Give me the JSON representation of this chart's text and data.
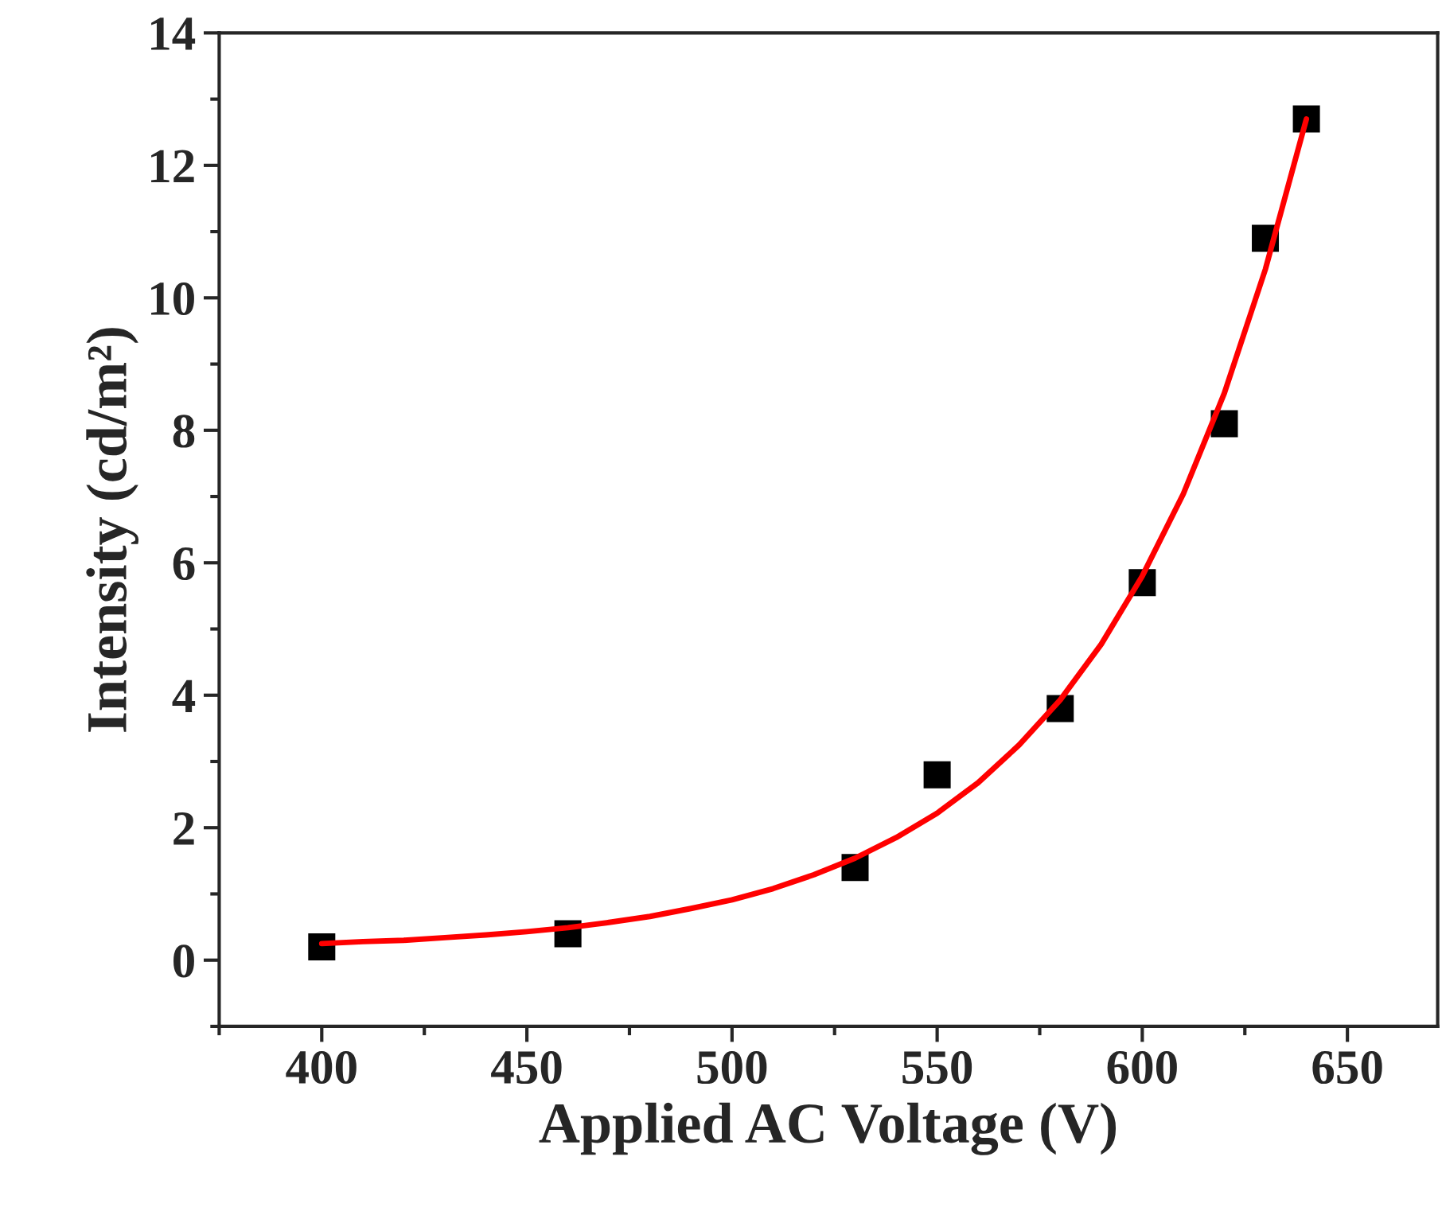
{
  "chart_data": {
    "type": "scatter",
    "xlabel": "Applied AC Voltage (V)",
    "ylabel": "Intensity (cd/m²)",
    "xlim": [
      375,
      672
    ],
    "xticks": [
      400,
      450,
      500,
      550,
      600,
      650
    ],
    "ylim": [
      -1,
      14
    ],
    "yticks": [
      0,
      2,
      4,
      6,
      8,
      10,
      12,
      14
    ],
    "grid": false,
    "legend": false,
    "series": [
      {
        "color": "#000000",
        "marker": "square",
        "x": [
          400,
          460,
          530,
          550,
          580,
          600,
          620,
          630,
          640
        ],
        "values": [
          0.2,
          0.4,
          1.4,
          2.8,
          3.8,
          5.7,
          8.1,
          10.9,
          12.7
        ]
      },
      {
        "type": "line",
        "color": "#ff0000",
        "marker": "none",
        "line_style": "solid",
        "x": [
          400,
          410,
          420,
          430,
          440,
          450,
          460,
          470,
          480,
          490,
          500,
          510,
          520,
          530,
          540,
          550,
          560,
          570,
          580,
          590,
          600,
          610,
          620,
          630,
          640
        ],
        "values": [
          0.25,
          0.28,
          0.3,
          0.34,
          0.38,
          0.43,
          0.49,
          0.57,
          0.66,
          0.78,
          0.91,
          1.08,
          1.29,
          1.54,
          1.85,
          2.22,
          2.68,
          3.25,
          3.93,
          4.77,
          5.8,
          7.04,
          8.56,
          10.43,
          12.7
        ]
      }
    ]
  }
}
